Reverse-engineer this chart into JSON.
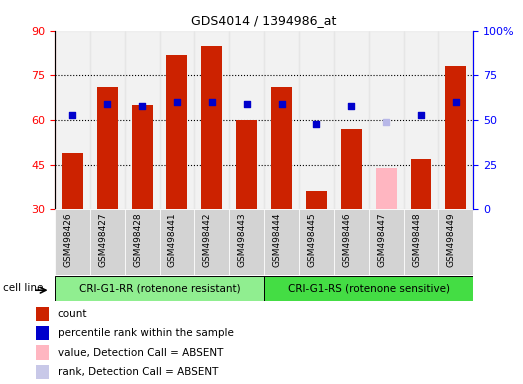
{
  "title": "GDS4014 / 1394986_at",
  "samples": [
    "GSM498426",
    "GSM498427",
    "GSM498428",
    "GSM498441",
    "GSM498442",
    "GSM498443",
    "GSM498444",
    "GSM498445",
    "GSM498446",
    "GSM498447",
    "GSM498448",
    "GSM498449"
  ],
  "groups": [
    "CRI-G1-RR (rotenone resistant)",
    "CRI-G1-RS (rotenone sensitive)"
  ],
  "group_colors": [
    "#90ee90",
    "#44dd44"
  ],
  "bar_colors": [
    "#cc2200",
    "#cc2200",
    "#cc2200",
    "#cc2200",
    "#cc2200",
    "#cc2200",
    "#cc2200",
    "#cc2200",
    "#cc2200",
    "#ffb6c1",
    "#cc2200",
    "#cc2200"
  ],
  "bar_values": [
    49,
    71,
    65,
    82,
    85,
    60,
    71,
    36,
    57,
    44,
    47,
    78
  ],
  "dot_values": [
    53,
    59,
    58,
    60,
    60,
    59,
    59,
    48,
    58,
    49,
    53,
    60
  ],
  "dot_colors": [
    "#0000cc",
    "#0000cc",
    "#0000cc",
    "#0000cc",
    "#0000cc",
    "#0000cc",
    "#0000cc",
    "#0000cc",
    "#0000cc",
    "#b8b8e8",
    "#0000cc",
    "#0000cc"
  ],
  "ylim_left": [
    30,
    90
  ],
  "ylim_right": [
    0,
    100
  ],
  "yticks_left": [
    30,
    45,
    60,
    75,
    90
  ],
  "yticks_right": [
    0,
    25,
    50,
    75,
    100
  ],
  "hlines": [
    45,
    60,
    75
  ],
  "bg_color": "#ffffff",
  "tick_bg": "#d3d3d3",
  "cell_line_label": "cell line",
  "legend": [
    {
      "color": "#cc2200",
      "label": "count"
    },
    {
      "color": "#0000cc",
      "label": "percentile rank within the sample"
    },
    {
      "color": "#ffb6c1",
      "label": "value, Detection Call = ABSENT"
    },
    {
      "color": "#c8c8e8",
      "label": "rank, Detection Call = ABSENT"
    }
  ]
}
